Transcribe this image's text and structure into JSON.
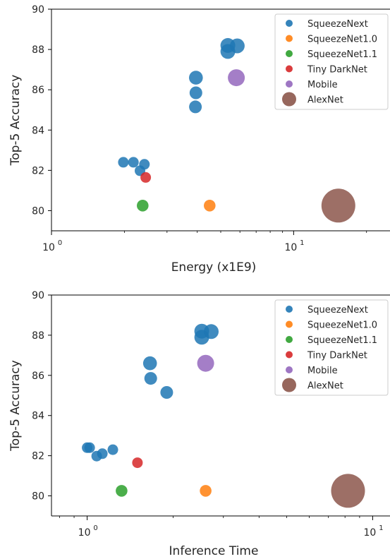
{
  "chart_data": [
    {
      "type": "scatter",
      "xscale": "log",
      "xlim": [
        1,
        25
      ],
      "ylim": [
        79,
        90
      ],
      "xlabel": "Energy (x1E9)",
      "ylabel": "Top-5 Accuracy",
      "x_ticks": [
        {
          "value": 1,
          "base": "10",
          "exp": "0"
        },
        {
          "value": 10,
          "base": "10",
          "exp": "1"
        }
      ],
      "y_ticks": [
        "80",
        "82",
        "84",
        "86",
        "88",
        "90"
      ],
      "grid": false,
      "legend_position": "top-right",
      "series": [
        {
          "name": "SqueezeNext",
          "color": "#1f77b4",
          "points": [
            {
              "x": 1.98,
              "y": 82.4,
              "s": 1
            },
            {
              "x": 2.18,
              "y": 82.4,
              "s": 1
            },
            {
              "x": 2.32,
              "y": 81.98,
              "s": 1
            },
            {
              "x": 2.42,
              "y": 82.3,
              "s": 1
            },
            {
              "x": 3.95,
              "y": 86.6,
              "s": 1.3
            },
            {
              "x": 3.95,
              "y": 85.85,
              "s": 1.2
            },
            {
              "x": 3.93,
              "y": 85.15,
              "s": 1.2
            },
            {
              "x": 5.35,
              "y": 88.2,
              "s": 1.4
            },
            {
              "x": 5.35,
              "y": 87.9,
              "s": 1.4
            },
            {
              "x": 5.85,
              "y": 88.18,
              "s": 1.4
            }
          ]
        },
        {
          "name": "SqueezeNet1.0",
          "color": "#ff7f0e",
          "points": [
            {
              "x": 4.5,
              "y": 80.25,
              "s": 1.1
            }
          ]
        },
        {
          "name": "SqueezeNet1.1",
          "color": "#2ca02c",
          "points": [
            {
              "x": 2.38,
              "y": 80.25,
              "s": 1.1
            }
          ]
        },
        {
          "name": "Tiny DarkNet",
          "color": "#d62728",
          "points": [
            {
              "x": 2.45,
              "y": 81.65,
              "s": 1
            }
          ]
        },
        {
          "name": "Mobile",
          "color": "#9467bd",
          "points": [
            {
              "x": 5.8,
              "y": 86.6,
              "s": 1.6
            }
          ]
        },
        {
          "name": "AlexNet",
          "color": "#8c564b",
          "points": [
            {
              "x": 15.3,
              "y": 80.25,
              "s": 3.2
            }
          ]
        }
      ]
    },
    {
      "type": "scatter",
      "xscale": "log",
      "xlim": [
        0.75,
        11.5
      ],
      "ylim": [
        79,
        90
      ],
      "xlabel": "Inference Time",
      "ylabel": "Top-5 Accuracy",
      "x_ticks": [
        {
          "value": 1,
          "base": "10",
          "exp": "0"
        },
        {
          "value": 10,
          "base": "10",
          "exp": "1"
        }
      ],
      "y_ticks": [
        "80",
        "82",
        "84",
        "86",
        "88",
        "90"
      ],
      "grid": false,
      "legend_position": "top-right",
      "series": [
        {
          "name": "SqueezeNext",
          "color": "#1f77b4",
          "points": [
            {
              "x": 1.0,
              "y": 82.4,
              "s": 1
            },
            {
              "x": 1.02,
              "y": 82.4,
              "s": 1
            },
            {
              "x": 1.08,
              "y": 81.98,
              "s": 1
            },
            {
              "x": 1.13,
              "y": 82.1,
              "s": 1
            },
            {
              "x": 1.23,
              "y": 82.3,
              "s": 1
            },
            {
              "x": 1.66,
              "y": 86.6,
              "s": 1.3
            },
            {
              "x": 1.67,
              "y": 85.85,
              "s": 1.2
            },
            {
              "x": 1.9,
              "y": 85.15,
              "s": 1.2
            },
            {
              "x": 2.52,
              "y": 88.2,
              "s": 1.4
            },
            {
              "x": 2.52,
              "y": 87.9,
              "s": 1.4
            },
            {
              "x": 2.72,
              "y": 88.18,
              "s": 1.4
            }
          ]
        },
        {
          "name": "SqueezeNet1.0",
          "color": "#ff7f0e",
          "points": [
            {
              "x": 2.6,
              "y": 80.25,
              "s": 1.1
            }
          ]
        },
        {
          "name": "SqueezeNet1.1",
          "color": "#2ca02c",
          "points": [
            {
              "x": 1.32,
              "y": 80.25,
              "s": 1.1
            }
          ]
        },
        {
          "name": "Tiny DarkNet",
          "color": "#d62728",
          "points": [
            {
              "x": 1.5,
              "y": 81.65,
              "s": 1
            }
          ]
        },
        {
          "name": "Mobile",
          "color": "#9467bd",
          "points": [
            {
              "x": 2.6,
              "y": 86.6,
              "s": 1.6
            }
          ]
        },
        {
          "name": "AlexNet",
          "color": "#8c564b",
          "points": [
            {
              "x": 8.2,
              "y": 80.25,
              "s": 3.2
            }
          ]
        }
      ]
    }
  ]
}
